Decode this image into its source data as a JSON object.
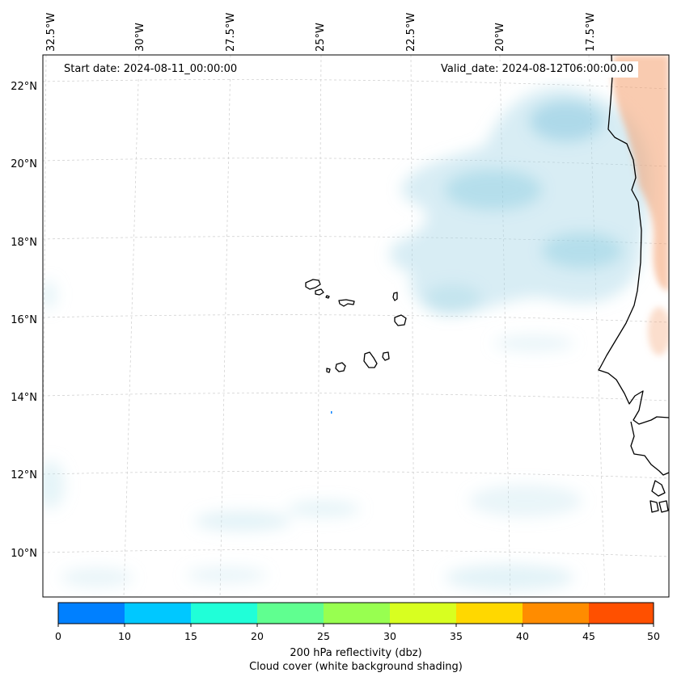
{
  "map": {
    "region": "Cape Verde Islands and West African coast",
    "start_date_text": "Start date: 2024-08-11_00:00:00",
    "valid_date_text": "Valid_date: 2024-08-12T06:00:00.00",
    "lon_labels": [
      "32.5°W",
      "30°W",
      "27.5°W",
      "25°W",
      "22.5°W",
      "20°W",
      "17.5°W"
    ],
    "lat_labels": [
      "22°N",
      "20°N",
      "18°N",
      "16°N",
      "14°N",
      "12°N",
      "10°N"
    ],
    "cloud_color": "#a8d8e6",
    "coast_color": "#000000",
    "warm_shade_color": "#f4a070"
  },
  "colorbar": {
    "label_line1": "200 hPa reflectivity (dbz)",
    "label_line2": "Cloud cover (white background shading)",
    "ticks": [
      "0",
      "10",
      "15",
      "20",
      "25",
      "30",
      "35",
      "40",
      "45",
      "50"
    ],
    "colors": [
      "#0080ff",
      "#00c8ff",
      "#20ffd8",
      "#60ff90",
      "#98ff50",
      "#d8ff20",
      "#ffd800",
      "#ff8c00",
      "#ff5000"
    ]
  }
}
